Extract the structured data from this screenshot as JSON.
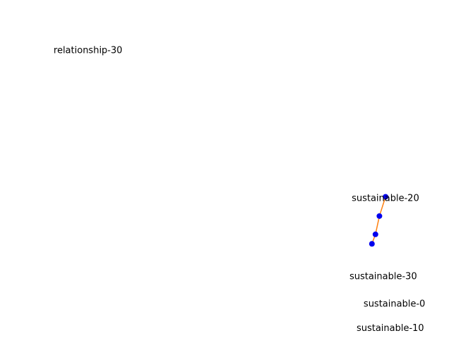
{
  "chart_data": {
    "type": "scatter",
    "title": "",
    "xlabel": "",
    "ylabel": "",
    "grid": false,
    "axes_visible": false,
    "xlim": [
      0,
      100
    ],
    "ylim": [
      0,
      100
    ],
    "points": [
      {
        "x": 83.3,
        "y": 27.1,
        "color": "#0000ee"
      },
      {
        "x": 84.1,
        "y": 30.0,
        "color": "#0000ee"
      },
      {
        "x": 85.0,
        "y": 35.6,
        "color": "#0000ee"
      },
      {
        "x": 86.4,
        "y": 41.5,
        "color": "#0000ee"
      }
    ],
    "line": {
      "color": "#ff7f0e",
      "points": [
        0,
        1,
        2,
        3
      ]
    },
    "text_labels": [
      {
        "text": "relationship-30",
        "x": 10.9,
        "y": 85.4
      },
      {
        "text": "sustainable-20",
        "x": 78.7,
        "y": 40.2
      },
      {
        "text": "sustainable-30",
        "x": 78.2,
        "y": 16.3
      },
      {
        "text": "sustainable-0",
        "x": 81.4,
        "y": 7.9
      },
      {
        "text": "sustainable-10",
        "x": 79.8,
        "y": 0.4
      }
    ]
  }
}
